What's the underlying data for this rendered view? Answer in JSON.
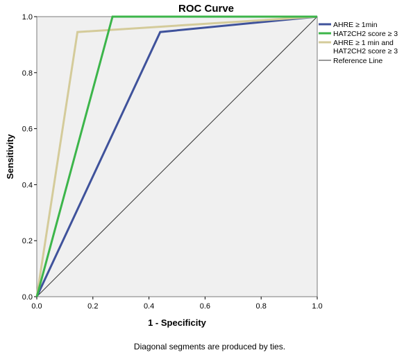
{
  "chart_data": {
    "type": "line",
    "title": "ROC Curve",
    "xlabel": "1 - Specificity",
    "ylabel": "Sensitivity",
    "xlim": [
      0,
      1
    ],
    "ylim": [
      0,
      1
    ],
    "xticks": [
      "0.0",
      "0.2",
      "0.4",
      "0.6",
      "0.8",
      "1.0"
    ],
    "yticks": [
      "0.0",
      "0.2",
      "0.4",
      "0.6",
      "0.8",
      "1.0"
    ],
    "grid": false,
    "legend_position": "right",
    "footnote": "Diagonal segments are produced by ties.",
    "series": [
      {
        "name": "AHRE ≥ 1min",
        "color": "#3f529b",
        "points": [
          [
            0,
            0
          ],
          [
            0.44,
            0.945
          ],
          [
            1,
            1
          ]
        ]
      },
      {
        "name": "HAT2CH2 score ≥ 3",
        "color": "#3cb54a",
        "points": [
          [
            0,
            0
          ],
          [
            0.27,
            1.0
          ],
          [
            1,
            1
          ]
        ]
      },
      {
        "name": "AHRE ≥ 1 min and HAT2CH2 score ≥ 3",
        "legend_lines": [
          "AHRE ≥ 1 min and",
          "HAT2CH2 score ≥ 3"
        ],
        "color": "#d4cb9a",
        "points": [
          [
            0,
            0
          ],
          [
            0.145,
            0.945
          ],
          [
            1,
            1
          ]
        ]
      },
      {
        "name": "Reference Line",
        "color": "#333333",
        "points": [
          [
            0,
            0
          ],
          [
            1,
            1
          ]
        ]
      }
    ]
  }
}
